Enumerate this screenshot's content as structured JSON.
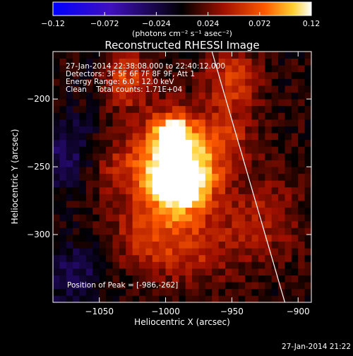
{
  "chart_data": {
    "type": "heatmap",
    "title": "Reconstructed RHESSI Image",
    "xlabel": "Heliocentric X (arcsec)",
    "ylabel": "Heliocentric Y (arcsec)",
    "xlim": [
      -1085,
      -890
    ],
    "ylim": [
      -350,
      -165
    ],
    "x_ticks": [
      -1050,
      -1000,
      -950,
      -900
    ],
    "x_tick_labels": [
      "−1050",
      "−1000",
      "−950",
      "−900"
    ],
    "y_ticks": [
      -200,
      -250,
      -300
    ],
    "y_tick_labels": [
      "−200",
      "−250",
      "−300"
    ],
    "colorbar": {
      "range": [
        -0.12,
        0.12
      ],
      "ticks": [
        -0.12,
        -0.072,
        -0.024,
        0.024,
        0.072,
        0.12
      ],
      "tick_labels": [
        "−0.12",
        "−0.072",
        "−0.024",
        "0.024",
        "0.072",
        "0.12"
      ],
      "units_label": "(photons cm⁻² s⁻¹ asec⁻²)"
    },
    "annotations": [
      "27-Jan-2014 22:38:08.000 to 22:40:12.000",
      "Detectors: 3F 5F 6F 7F 8F 9F, Att 1",
      "Energy Range: 6.0 - 12.0 keV",
      "Clean    Total counts: 1.71E+04"
    ],
    "peak_label": "Position of Peak = [-986,-262]",
    "peak": [
      -986,
      -262
    ],
    "limb_line": [
      [
        -965,
        -165
      ],
      [
        -910,
        -350
      ]
    ],
    "sources": [
      {
        "x": -988,
        "y": -262,
        "value": 0.12,
        "sigma": 16
      },
      {
        "x": -995,
        "y": -225,
        "value": 0.09,
        "sigma": 10
      },
      {
        "x": -1000,
        "y": -245,
        "value": 0.07,
        "sigma": 22
      },
      {
        "x": -1030,
        "y": -185,
        "value": 0.06,
        "sigma": 14
      },
      {
        "x": -950,
        "y": -185,
        "value": 0.055,
        "sigma": 14
      },
      {
        "x": -960,
        "y": -230,
        "value": 0.05,
        "sigma": 18
      },
      {
        "x": -1015,
        "y": -300,
        "value": 0.045,
        "sigma": 18
      },
      {
        "x": -980,
        "y": -310,
        "value": 0.04,
        "sigma": 20
      },
      {
        "x": -930,
        "y": -290,
        "value": 0.035,
        "sigma": 22
      },
      {
        "x": -1040,
        "y": -250,
        "value": 0.03,
        "sigma": 16
      }
    ],
    "negative_regions": [
      {
        "x": -1075,
        "y": -240,
        "value": -0.04,
        "sigma": 20
      },
      {
        "x": -1070,
        "y": -330,
        "value": -0.035,
        "sigma": 18
      },
      {
        "x": -1050,
        "y": -175,
        "value": -0.02,
        "sigma": 12
      }
    ]
  },
  "footer_timestamp": "27-Jan-2014 21:22"
}
